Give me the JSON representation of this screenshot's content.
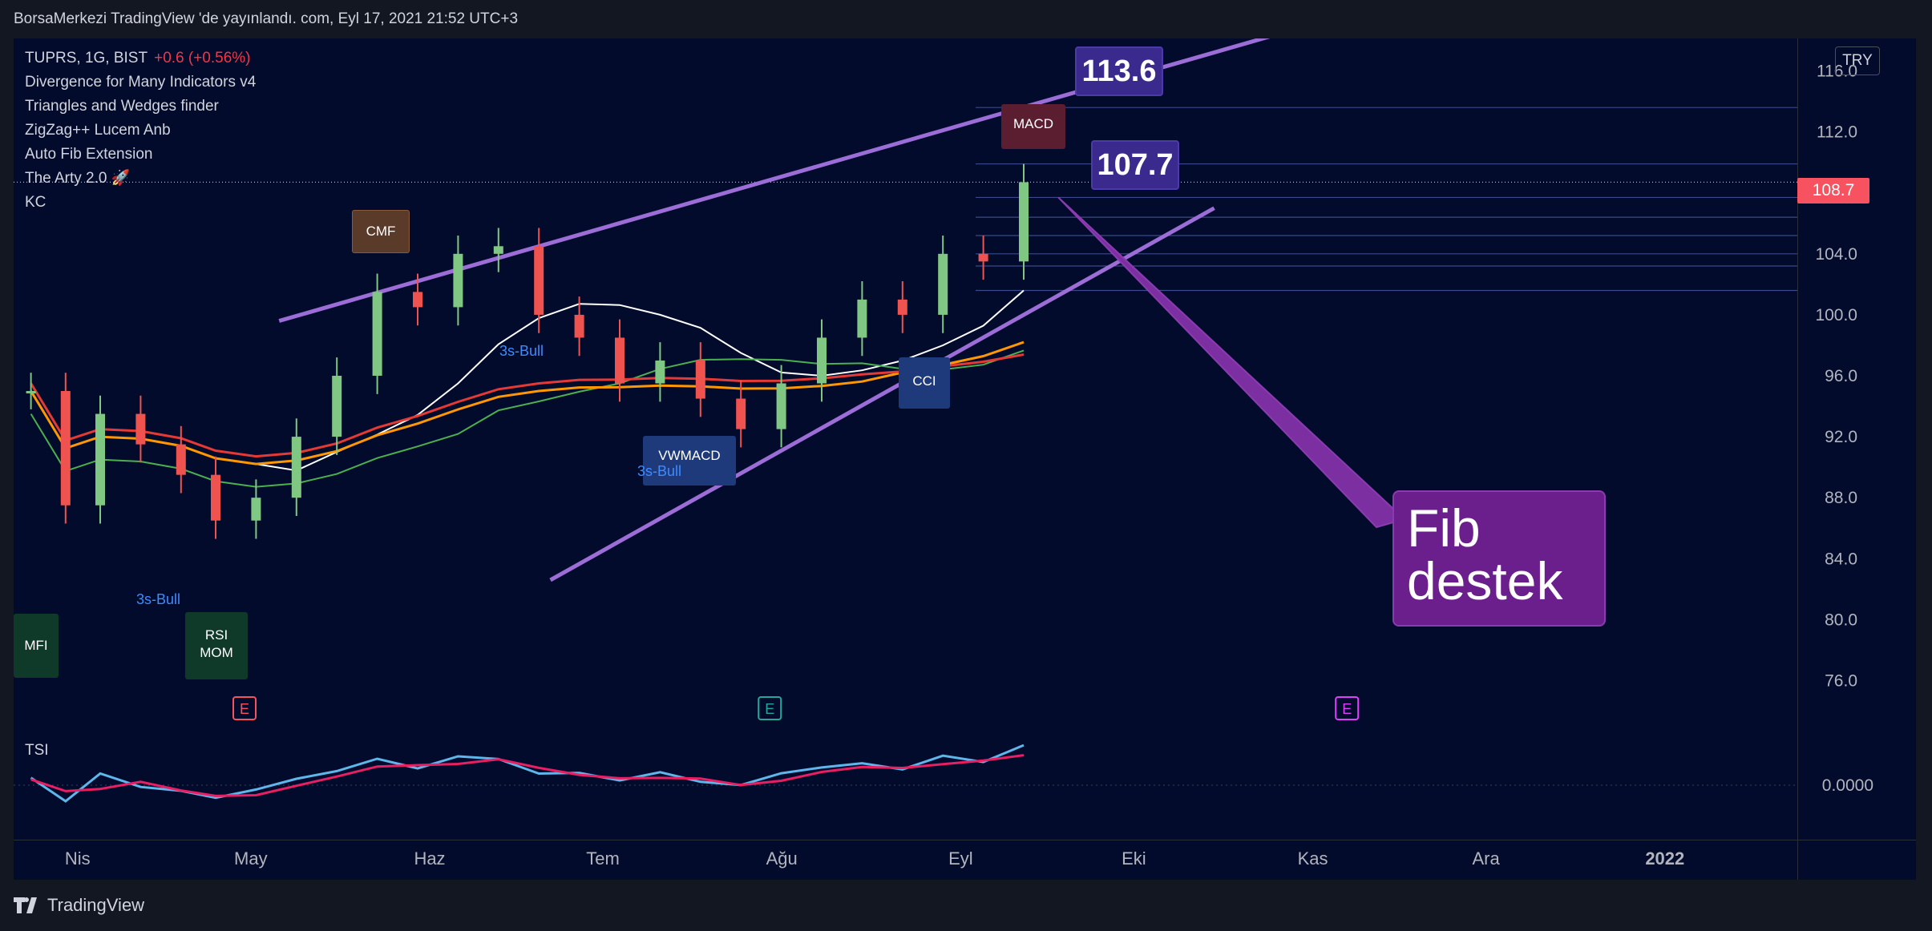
{
  "header": {
    "publish_line": "BorsaMerkezi TradingView 'de yayınlandı. com, Eyl 17, 2021 21:52 UTC+3"
  },
  "footer": {
    "brand": "TradingView"
  },
  "legend": {
    "symbol_line": "TUPRS, 1G, BIST",
    "change": "+0.6 (+0.56%)",
    "indicators": [
      "Divergence for Many Indicators v4",
      "Triangles and Wedges finder",
      "ZigZag++ Lucem Anb",
      "Auto Fib Extension",
      "The Arty 2.0 🚀",
      "KC"
    ]
  },
  "currency_button": "TRY",
  "tsi_label": "TSI",
  "current_price": "108.7",
  "callouts": {
    "top": "113.6",
    "mid": "107.7",
    "fib": [
      "Fib",
      "destek"
    ]
  },
  "signal_labels": {
    "cmf": "CMF",
    "macd": "MACD",
    "cci": "CCI",
    "vwmacd": "VWMACD",
    "mfi": "MFI",
    "rsi": [
      "RSI",
      "MOM"
    ],
    "bull": "3s-Bull",
    "earnings": "E"
  },
  "colors": {
    "background": "#020b2b",
    "up": "#26a69a",
    "up_candle": "#81c784",
    "down_candle": "#ef5350",
    "channel": "#9c6dd6",
    "tsi_line": "#5fb6ea",
    "tsi_signal": "#e91e63",
    "ma_red": "#e53935",
    "ma_orange": "#ff9800",
    "ma_green": "#4caf50",
    "ma_white": "#ffffff",
    "fib_box": "#6a1f8c",
    "callout": "#3a2a8e"
  },
  "chart_data": {
    "type": "candlestick",
    "symbol": "TUPRS",
    "timeframe": "1G",
    "exchange": "BIST",
    "x_axis_labels": [
      "Nis",
      "May",
      "Haz",
      "Tem",
      "Ağu",
      "Eyl",
      "Eki",
      "Kas",
      "Ara",
      "2022"
    ],
    "y_axis_labels": [
      "116.0",
      "112.0",
      "108.0",
      "104.0",
      "100.0",
      "96.0",
      "92.0",
      "88.0",
      "84.0",
      "80.0",
      "76.0"
    ],
    "ylim": [
      74.5,
      117.5
    ],
    "tsi_axis_label": "0.0000",
    "close_series": [
      {
        "x": "2021-03-26",
        "close": 95
      },
      {
        "x": "2021-04-01",
        "close": 87.5
      },
      {
        "x": "2021-04-07",
        "close": 93.5
      },
      {
        "x": "2021-04-14",
        "close": 91.5
      },
      {
        "x": "2021-04-21",
        "close": 89.5
      },
      {
        "x": "2021-04-27",
        "close": 86.5
      },
      {
        "x": "2021-05-04",
        "close": 88
      },
      {
        "x": "2021-05-11",
        "close": 92
      },
      {
        "x": "2021-05-18",
        "close": 96
      },
      {
        "x": "2021-05-25",
        "close": 101.5
      },
      {
        "x": "2021-06-01",
        "close": 100.5
      },
      {
        "x": "2021-06-08",
        "close": 104
      },
      {
        "x": "2021-06-15",
        "close": 104.5
      },
      {
        "x": "2021-06-22",
        "close": 100
      },
      {
        "x": "2021-06-29",
        "close": 98.5
      },
      {
        "x": "2021-07-06",
        "close": 95.5
      },
      {
        "x": "2021-07-13",
        "close": 97
      },
      {
        "x": "2021-07-20",
        "close": 94.5
      },
      {
        "x": "2021-07-27",
        "close": 92.5
      },
      {
        "x": "2021-08-03",
        "close": 95.5
      },
      {
        "x": "2021-08-10",
        "close": 98.5
      },
      {
        "x": "2021-08-17",
        "close": 101
      },
      {
        "x": "2021-08-24",
        "close": 100
      },
      {
        "x": "2021-08-31",
        "close": 104
      },
      {
        "x": "2021-09-07",
        "close": 103.5
      },
      {
        "x": "2021-09-14",
        "close": 108.7
      }
    ],
    "fib_levels": [
      113.6,
      109.9,
      108.7,
      107.7,
      106.4,
      105.2,
      104.0,
      103.2,
      101.6
    ]
  }
}
